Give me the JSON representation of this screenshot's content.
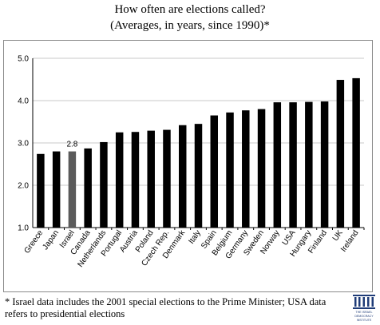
{
  "title_line1": "How often are elections called?",
  "title_line2": "(Averages, in years, since 1990)*",
  "footnote_line1": "* Israel data includes the 2001 special elections to the Prime Minister; USA data",
  "footnote_line2": "refers to presidential elections",
  "logo": {
    "lines": [
      "THE ISRAEL",
      "DEMOCRACY",
      "INSTITUTE"
    ],
    "color": "#1f3c78"
  },
  "colors": {
    "bar": "#000000",
    "highlight_bar": "#5a5a5a",
    "grid": "#c8c8c8"
  },
  "chart_data": {
    "type": "bar",
    "categories": [
      "Greece",
      "Japan",
      "Israel",
      "Canada",
      "Netherlands",
      "Portugal",
      "Austria",
      "Poland",
      "Czech Rep.",
      "Denmark",
      "Italy",
      "Spain",
      "Belgium",
      "Germany",
      "Sweden",
      "Norway",
      "USA",
      "Hungary",
      "Finland",
      "UK",
      "Ireland"
    ],
    "values": [
      2.74,
      2.8,
      2.8,
      2.87,
      3.02,
      3.25,
      3.26,
      3.29,
      3.31,
      3.42,
      3.45,
      3.65,
      3.72,
      3.77,
      3.8,
      3.96,
      3.96,
      3.97,
      3.98,
      4.49,
      4.53
    ],
    "highlight_category": "Israel",
    "data_labels": [
      {
        "category": "Israel",
        "text": "2.8"
      }
    ],
    "ylim": [
      1.0,
      5.0
    ],
    "yticks": [
      "1.0",
      "2.0",
      "3.0",
      "4.0",
      "5.0"
    ],
    "ytick_values": [
      1.0,
      2.0,
      3.0,
      4.0,
      5.0
    ],
    "grid": true,
    "legend": "none"
  }
}
